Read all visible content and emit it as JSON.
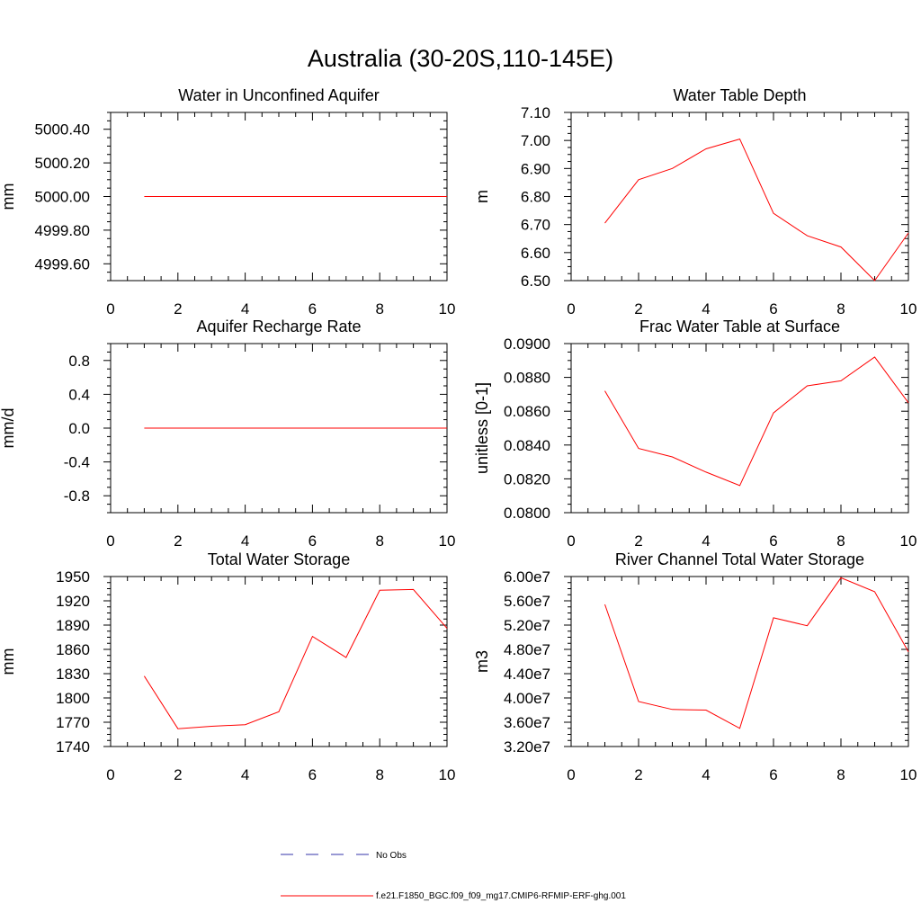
{
  "figure_title": "Australia (30-20S,110-145E)",
  "colors": {
    "model": "#ff0000",
    "obs": "#3333aa",
    "axis": "#000000"
  },
  "legend": {
    "obs_label": "No Obs",
    "model_label": "f.e21.F1850_BGC.f09_f09_mg17.CMIP6-RFMIP-ERF-ghg.001"
  },
  "chart_data": [
    {
      "type": "line",
      "title": "Water in Unconfined Aquifer",
      "ylabel": "mm",
      "xlim": [
        0,
        10
      ],
      "ylim": [
        4999.5,
        5000.5
      ],
      "xticks": [
        0,
        2,
        4,
        6,
        8,
        10
      ],
      "yticks": [
        4999.6,
        4999.8,
        5000.0,
        5000.2,
        5000.4
      ],
      "ytick_labels": [
        "4999.60",
        "4999.80",
        "5000.00",
        "5000.20",
        "5000.40"
      ],
      "series": [
        {
          "x": [
            1,
            2,
            3,
            4,
            5,
            6,
            7,
            8,
            9,
            10
          ],
          "values": [
            5000,
            5000,
            5000,
            5000,
            5000,
            5000,
            5000,
            5000,
            5000,
            5000
          ]
        }
      ]
    },
    {
      "type": "line",
      "title": "Water Table Depth",
      "ylabel": "m",
      "xlim": [
        0,
        10
      ],
      "ylim": [
        6.5,
        7.1
      ],
      "xticks": [
        0,
        2,
        4,
        6,
        8,
        10
      ],
      "yticks": [
        6.5,
        6.6,
        6.7,
        6.8,
        6.9,
        7.0,
        7.1
      ],
      "ytick_labels": [
        "6.50",
        "6.60",
        "6.70",
        "6.80",
        "6.90",
        "7.00",
        "7.10"
      ],
      "series": [
        {
          "x": [
            1,
            2,
            3,
            4,
            5,
            6,
            7,
            8,
            9,
            10
          ],
          "values": [
            6.705,
            6.86,
            6.9,
            6.97,
            7.005,
            6.74,
            6.66,
            6.62,
            6.5,
            6.67
          ]
        }
      ]
    },
    {
      "type": "line",
      "title": "Aquifer Recharge Rate",
      "ylabel": "mm/d",
      "xlim": [
        0,
        10
      ],
      "ylim": [
        -1.0,
        1.0
      ],
      "xticks": [
        0,
        2,
        4,
        6,
        8,
        10
      ],
      "yticks": [
        -0.8,
        -0.4,
        0.0,
        0.4,
        0.8
      ],
      "ytick_labels": [
        "-0.8",
        "-0.4",
        "0.0",
        "0.4",
        "0.8"
      ],
      "series": [
        {
          "x": [
            1,
            2,
            3,
            4,
            5,
            6,
            7,
            8,
            9,
            10
          ],
          "values": [
            0,
            0,
            0,
            0,
            0,
            0,
            0,
            0,
            0,
            0
          ]
        }
      ]
    },
    {
      "type": "line",
      "title": "Frac Water Table at Surface",
      "ylabel": "unitless [0-1]",
      "xlim": [
        0,
        10
      ],
      "ylim": [
        0.08,
        0.09
      ],
      "xticks": [
        0,
        2,
        4,
        6,
        8,
        10
      ],
      "yticks": [
        0.08,
        0.082,
        0.084,
        0.086,
        0.088,
        0.09
      ],
      "ytick_labels": [
        "0.0800",
        "0.0820",
        "0.0840",
        "0.0860",
        "0.0880",
        "0.0900"
      ],
      "series": [
        {
          "x": [
            1,
            2,
            3,
            4,
            5,
            6,
            7,
            8,
            9,
            10
          ],
          "values": [
            0.0872,
            0.0838,
            0.0833,
            0.0824,
            0.0816,
            0.0859,
            0.0875,
            0.0878,
            0.0892,
            0.0865
          ]
        }
      ]
    },
    {
      "type": "line",
      "title": "Total Water Storage",
      "ylabel": "mm",
      "xlim": [
        0,
        10
      ],
      "ylim": [
        1740,
        1950
      ],
      "xticks": [
        0,
        2,
        4,
        6,
        8,
        10
      ],
      "yticks": [
        1740,
        1770,
        1800,
        1830,
        1860,
        1890,
        1920,
        1950
      ],
      "ytick_labels": [
        "1740",
        "1770",
        "1800",
        "1830",
        "1860",
        "1890",
        "1920",
        "1950"
      ],
      "series": [
        {
          "x": [
            1,
            2,
            3,
            4,
            5,
            6,
            7,
            8,
            9,
            10
          ],
          "values": [
            1827,
            1762,
            1765,
            1767,
            1783,
            1876,
            1850,
            1933,
            1934,
            1886
          ]
        }
      ]
    },
    {
      "type": "line",
      "title": "River Channel Total Water Storage",
      "ylabel": "m3",
      "xlim": [
        0,
        10
      ],
      "ylim": [
        32000000,
        60000000
      ],
      "xticks": [
        0,
        2,
        4,
        6,
        8,
        10
      ],
      "yticks": [
        32000000,
        36000000,
        40000000,
        44000000,
        48000000,
        52000000,
        56000000,
        60000000
      ],
      "ytick_labels": [
        "3.20e7",
        "3.60e7",
        "4.00e7",
        "4.40e7",
        "4.80e7",
        "5.20e7",
        "5.60e7",
        "6.00e7"
      ],
      "series": [
        {
          "x": [
            1,
            2,
            3,
            4,
            5,
            6,
            7,
            8,
            9,
            10
          ],
          "values": [
            55400000,
            39400000,
            38100000,
            38000000,
            35000000,
            53200000,
            51900000,
            59800000,
            57500000,
            47600000
          ]
        }
      ]
    }
  ]
}
